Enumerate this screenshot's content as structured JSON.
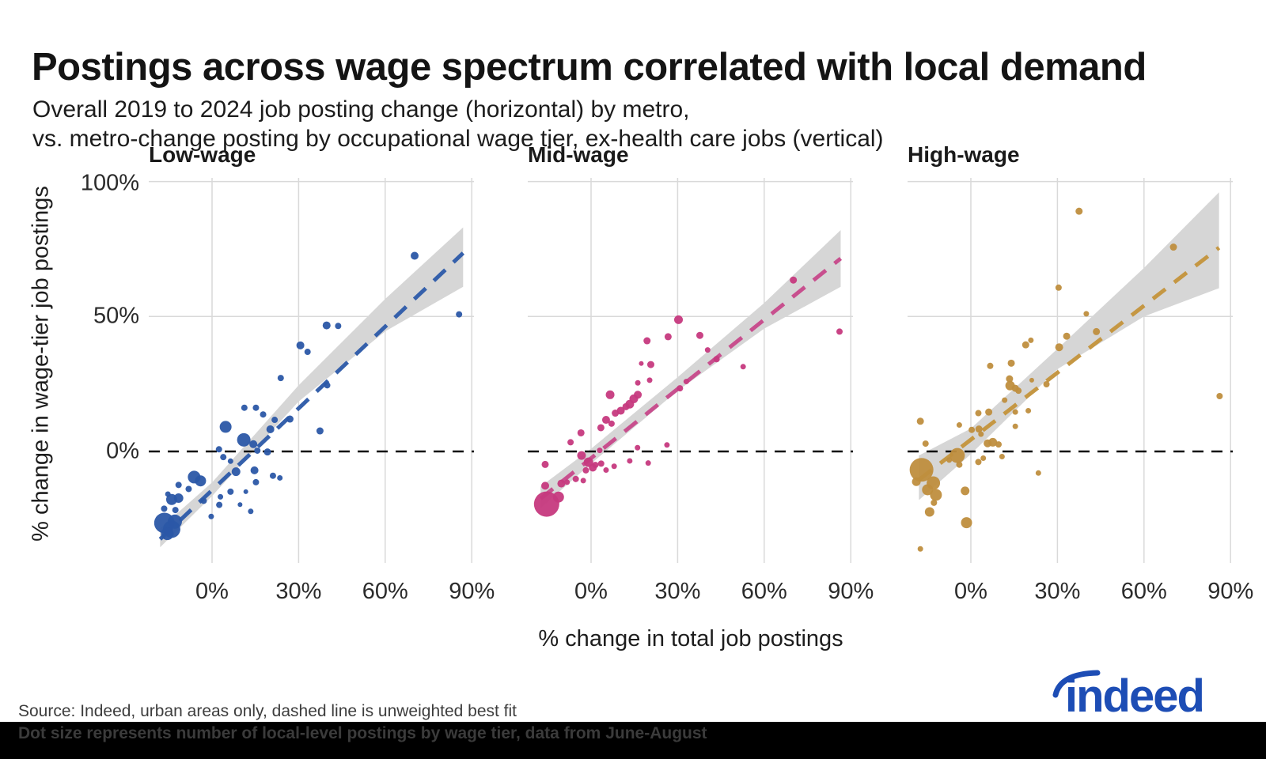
{
  "header": {
    "title": "Postings across wage spectrum correlated with local demand",
    "subtitle_line1": "Overall 2019 to 2024 job posting change (horizontal) by metro,",
    "subtitle_line2": "vs. metro-change posting by occupational wage tier, ex-health care jobs (vertical)"
  },
  "footer": {
    "source": "Source: Indeed, urban areas only, dashed line is unweighted best fit",
    "dot_note": "Dot size represents number of local-level postings by wage tier, data from June-August"
  },
  "logo": {
    "text": "indeed",
    "color": "#1d4db5"
  },
  "chart_data": {
    "type": "scatter",
    "title": "Postings across wage spectrum correlated with local demand",
    "xlabel": "% change in total job postings",
    "ylabel": "% change in wage-tier job postings",
    "xlim": [
      -22,
      91
    ],
    "ylim": [
      -43,
      102
    ],
    "grid": true,
    "x_tick_values": [
      0,
      30,
      60,
      90
    ],
    "x_tick_labels": [
      "0%",
      "30%",
      "60%",
      "90%"
    ],
    "y_ticks": [
      {
        "value": 100,
        "label": "100%"
      },
      {
        "value": 50,
        "label": "50%"
      },
      {
        "value": 0,
        "label": "0%"
      }
    ],
    "zero_line_color": "#0a0a0a",
    "band_color": "#d6d6d6",
    "grid_color": "#d9d9d9",
    "panels": [
      {
        "title": "Low-wage",
        "dot_color": "#2b57a7",
        "trend_color": "#3560ab",
        "trend": {
          "x1": -18,
          "y1": -32.5,
          "x2": 87,
          "y2": 73.5
        },
        "band": [
          [
            -18,
            -28.5,
            -35.5
          ],
          [
            0,
            -11.5,
            -16.5
          ],
          [
            30,
            24.5,
            18.5
          ],
          [
            60,
            56.5,
            44.5
          ],
          [
            87,
            83,
            61
          ]
        ],
        "points": [
          [
            -16.5,
            -26.5,
            13
          ],
          [
            -14.0,
            -28.8,
            11
          ],
          [
            -15.5,
            -30.5,
            8
          ],
          [
            -12.9,
            -26.0,
            9
          ],
          [
            -11.6,
            -17.3,
            6
          ],
          [
            -14.0,
            -17.8,
            7
          ],
          [
            -12.7,
            -21.7,
            4
          ],
          [
            -11.6,
            -12.4,
            4
          ],
          [
            -15.3,
            -15.8,
            3.5
          ],
          [
            -16.6,
            -21.2,
            4
          ],
          [
            -6.2,
            -9.5,
            8
          ],
          [
            -4.0,
            -10.9,
            7
          ],
          [
            -8.1,
            -13.9,
            4
          ],
          [
            -2.9,
            -18.3,
            4
          ],
          [
            2.5,
            -19.8,
            4
          ],
          [
            2.9,
            -16.8,
            3.5
          ],
          [
            6.4,
            -14.9,
            4
          ],
          [
            9.7,
            -19.7,
            3
          ],
          [
            13.4,
            -22.2,
            3.5
          ],
          [
            -0.3,
            -24.1,
            3.5
          ],
          [
            8.3,
            -7.5,
            5.5
          ],
          [
            14.7,
            -7.0,
            5
          ],
          [
            15.2,
            -11.4,
            4
          ],
          [
            11.7,
            -14.9,
            3
          ],
          [
            21.1,
            -9.0,
            4
          ],
          [
            23.5,
            -9.8,
            3.5
          ],
          [
            3.9,
            -2.1,
            4
          ],
          [
            2.4,
            0.8,
            4
          ],
          [
            6.4,
            -3.6,
            3.5
          ],
          [
            4.7,
            9.1,
            7.5
          ],
          [
            11,
            4.3,
            8.5
          ],
          [
            14.3,
            2.7,
            5
          ],
          [
            15.7,
            0.3,
            4
          ],
          [
            19.2,
            -0.2,
            4.5
          ],
          [
            20.2,
            8.2,
            5
          ],
          [
            21.7,
            11.7,
            4
          ],
          [
            17.7,
            13.7,
            4
          ],
          [
            11.2,
            16.2,
            4
          ],
          [
            15.2,
            16.2,
            4
          ],
          [
            27,
            12,
            4.5
          ],
          [
            37.4,
            7.6,
            4.5
          ],
          [
            23.8,
            27.2,
            4
          ],
          [
            30.6,
            39.3,
            5
          ],
          [
            33.1,
            36.9,
            4
          ],
          [
            39.7,
            46.7,
            5
          ],
          [
            43.7,
            46.5,
            4
          ],
          [
            39.9,
            24.5,
            4
          ],
          [
            70.2,
            72.5,
            5
          ],
          [
            85.6,
            50.8,
            4
          ]
        ]
      },
      {
        "title": "Mid-wage",
        "dot_color": "#c6397e",
        "trend_color": "#c84f8e",
        "trend": {
          "x1": -17.5,
          "y1": -17.5,
          "x2": 86.5,
          "y2": 71.5
        },
        "band": [
          [
            -17.5,
            -13,
            -21
          ],
          [
            0,
            1,
            -4.5
          ],
          [
            30,
            27.5,
            22.5
          ],
          [
            60,
            55,
            45.5
          ],
          [
            86.5,
            82,
            61
          ]
        ],
        "points": [
          [
            -15.4,
            -19.5,
            16
          ],
          [
            -11.3,
            -16.9,
            7
          ],
          [
            -15.9,
            -12.7,
            5
          ],
          [
            -10.3,
            -11.9,
            5
          ],
          [
            -15.9,
            -4.8,
            4.5
          ],
          [
            -8.3,
            -11.4,
            3.5
          ],
          [
            -2.7,
            -10.8,
            3.5
          ],
          [
            -5.3,
            -10.2,
            4
          ],
          [
            -7.1,
            3.4,
            4
          ],
          [
            -3.5,
            6.9,
            4.5
          ],
          [
            -3.3,
            -1.5,
            5.5
          ],
          [
            -0.9,
            -4.0,
            6
          ],
          [
            0.6,
            -6.0,
            5
          ],
          [
            -1.8,
            -7.0,
            4
          ],
          [
            1.5,
            -5.0,
            4
          ],
          [
            3.5,
            -4.5,
            4
          ],
          [
            5.2,
            -6.9,
            3.5
          ],
          [
            8.0,
            -5.5,
            3.5
          ],
          [
            13.4,
            -3.5,
            3.5
          ],
          [
            16.1,
            1.4,
            3.5
          ],
          [
            3.0,
            0.4,
            3.5
          ],
          [
            3.4,
            8.8,
            4.5
          ],
          [
            5.2,
            11.7,
            5
          ],
          [
            7.1,
            10.3,
            4
          ],
          [
            8.4,
            14.2,
            4.5
          ],
          [
            10.3,
            15.1,
            5
          ],
          [
            12.1,
            16.6,
            4.5
          ],
          [
            13.4,
            17.5,
            5.5
          ],
          [
            14.8,
            19.5,
            5.5
          ],
          [
            16.2,
            21.0,
            5
          ],
          [
            6.6,
            21.0,
            5.5
          ],
          [
            16.2,
            25.4,
            3.5
          ],
          [
            20.3,
            26.4,
            3.5
          ],
          [
            20.7,
            32.2,
            4.5
          ],
          [
            17.4,
            32.6,
            3
          ],
          [
            19.4,
            41.0,
            4.5
          ],
          [
            26.7,
            42.5,
            4.5
          ],
          [
            30.3,
            48.8,
            5.5
          ],
          [
            30.8,
            23.4,
            4
          ],
          [
            33.0,
            25.9,
            3.5
          ],
          [
            26.3,
            2.4,
            3.5
          ],
          [
            19.8,
            -4.3,
            3.5
          ],
          [
            37.7,
            43.0,
            4.5
          ],
          [
            40.4,
            37.6,
            3.5
          ],
          [
            43.5,
            34.2,
            4
          ],
          [
            52.7,
            31.4,
            3.5
          ],
          [
            70.1,
            63.5,
            4.5
          ],
          [
            86.1,
            44.4,
            4
          ]
        ]
      },
      {
        "title": "High-wage",
        "dot_color": "#bf8e3e",
        "trend_color": "#c59743",
        "trend": {
          "x1": -18,
          "y1": -10.5,
          "x2": 86,
          "y2": 75.5
        },
        "band": [
          [
            -18,
            -1.5,
            -18
          ],
          [
            0,
            8.5,
            -1
          ],
          [
            30,
            38,
            30.5
          ],
          [
            60,
            68,
            50
          ],
          [
            86,
            96,
            60.5
          ]
        ],
        "points": [
          [
            37.5,
            89,
            4.5
          ],
          [
            70.2,
            75.7,
            4.5
          ],
          [
            30.4,
            60.7,
            4
          ],
          [
            40.0,
            51.0,
            3.5
          ],
          [
            43.5,
            44.4,
            4.5
          ],
          [
            33.2,
            42.7,
            4.5
          ],
          [
            30.6,
            38.6,
            5
          ],
          [
            20.8,
            41.2,
            3.5
          ],
          [
            19.0,
            39.5,
            4.5
          ],
          [
            6.7,
            31.7,
            4
          ],
          [
            14.0,
            32.7,
            4.5
          ],
          [
            13.4,
            26.9,
            4.5
          ],
          [
            13.6,
            24.4,
            6
          ],
          [
            15.4,
            23.4,
            4.5
          ],
          [
            21.1,
            26.4,
            3
          ],
          [
            26.2,
            24.9,
            4
          ],
          [
            16.5,
            22.5,
            4
          ],
          [
            11.7,
            19.0,
            3.5
          ],
          [
            15.4,
            14.6,
            3.5
          ],
          [
            19.9,
            15.1,
            3.5
          ],
          [
            15.4,
            9.3,
            3.5
          ],
          [
            2.6,
            14.2,
            4
          ],
          [
            6.2,
            14.6,
            4.5
          ],
          [
            2.8,
            8.3,
            4.5
          ],
          [
            0.3,
            8.0,
            4
          ],
          [
            3.5,
            6.4,
            3.5
          ],
          [
            -4.0,
            9.8,
            3.5
          ],
          [
            -17.5,
            11.2,
            4.5
          ],
          [
            -15.7,
            2.9,
            4
          ],
          [
            7.6,
            3.4,
            5.5
          ],
          [
            5.8,
            3.0,
            5
          ],
          [
            9.6,
            2.6,
            4
          ],
          [
            2.6,
            -3.9,
            4
          ],
          [
            4.3,
            -2.5,
            3.5
          ],
          [
            10.8,
            -1.9,
            3.5
          ],
          [
            -4.7,
            -1.5,
            9.5
          ],
          [
            -4.0,
            -4.9,
            4
          ],
          [
            -7.5,
            -3.2,
            3.5
          ],
          [
            -17.1,
            -6.8,
            15
          ],
          [
            -18.9,
            -11.2,
            5.5
          ],
          [
            -13.0,
            -11.7,
            8.5
          ],
          [
            -15.0,
            -14.2,
            7
          ],
          [
            -12.1,
            -16.1,
            7.5
          ],
          [
            -12.8,
            -19.0,
            4
          ],
          [
            -14.3,
            -22.4,
            6
          ],
          [
            -1.5,
            -26.4,
            7
          ],
          [
            -2.0,
            -14.6,
            5.5
          ],
          [
            23.4,
            -8.0,
            3.5
          ],
          [
            -17.5,
            -36.1,
            3.5
          ],
          [
            86.2,
            20.5,
            4
          ]
        ]
      }
    ]
  }
}
